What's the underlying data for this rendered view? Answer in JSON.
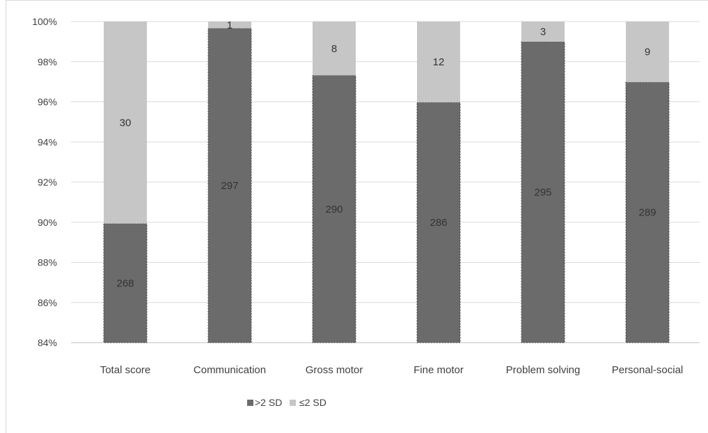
{
  "chart_data": {
    "type": "bar",
    "stacked": "percent",
    "categories": [
      "Total score",
      "Communication",
      "Gross motor",
      "Fine motor",
      "Problem solving",
      "Personal-social"
    ],
    "series": [
      {
        "name": ">2 SD",
        "values": [
          268,
          297,
          290,
          286,
          295,
          289
        ],
        "color": "#6b6b6b"
      },
      {
        "name": "≤2 SD",
        "values": [
          30,
          1,
          8,
          12,
          3,
          9
        ],
        "color": "#c6c6c6"
      }
    ],
    "ylim": [
      84,
      100
    ],
    "yticks": [
      "84%",
      "86%",
      "88%",
      "90%",
      "92%",
      "94%",
      "96%",
      "98%",
      "100%"
    ],
    "grid": true,
    "legend": "bottom"
  }
}
